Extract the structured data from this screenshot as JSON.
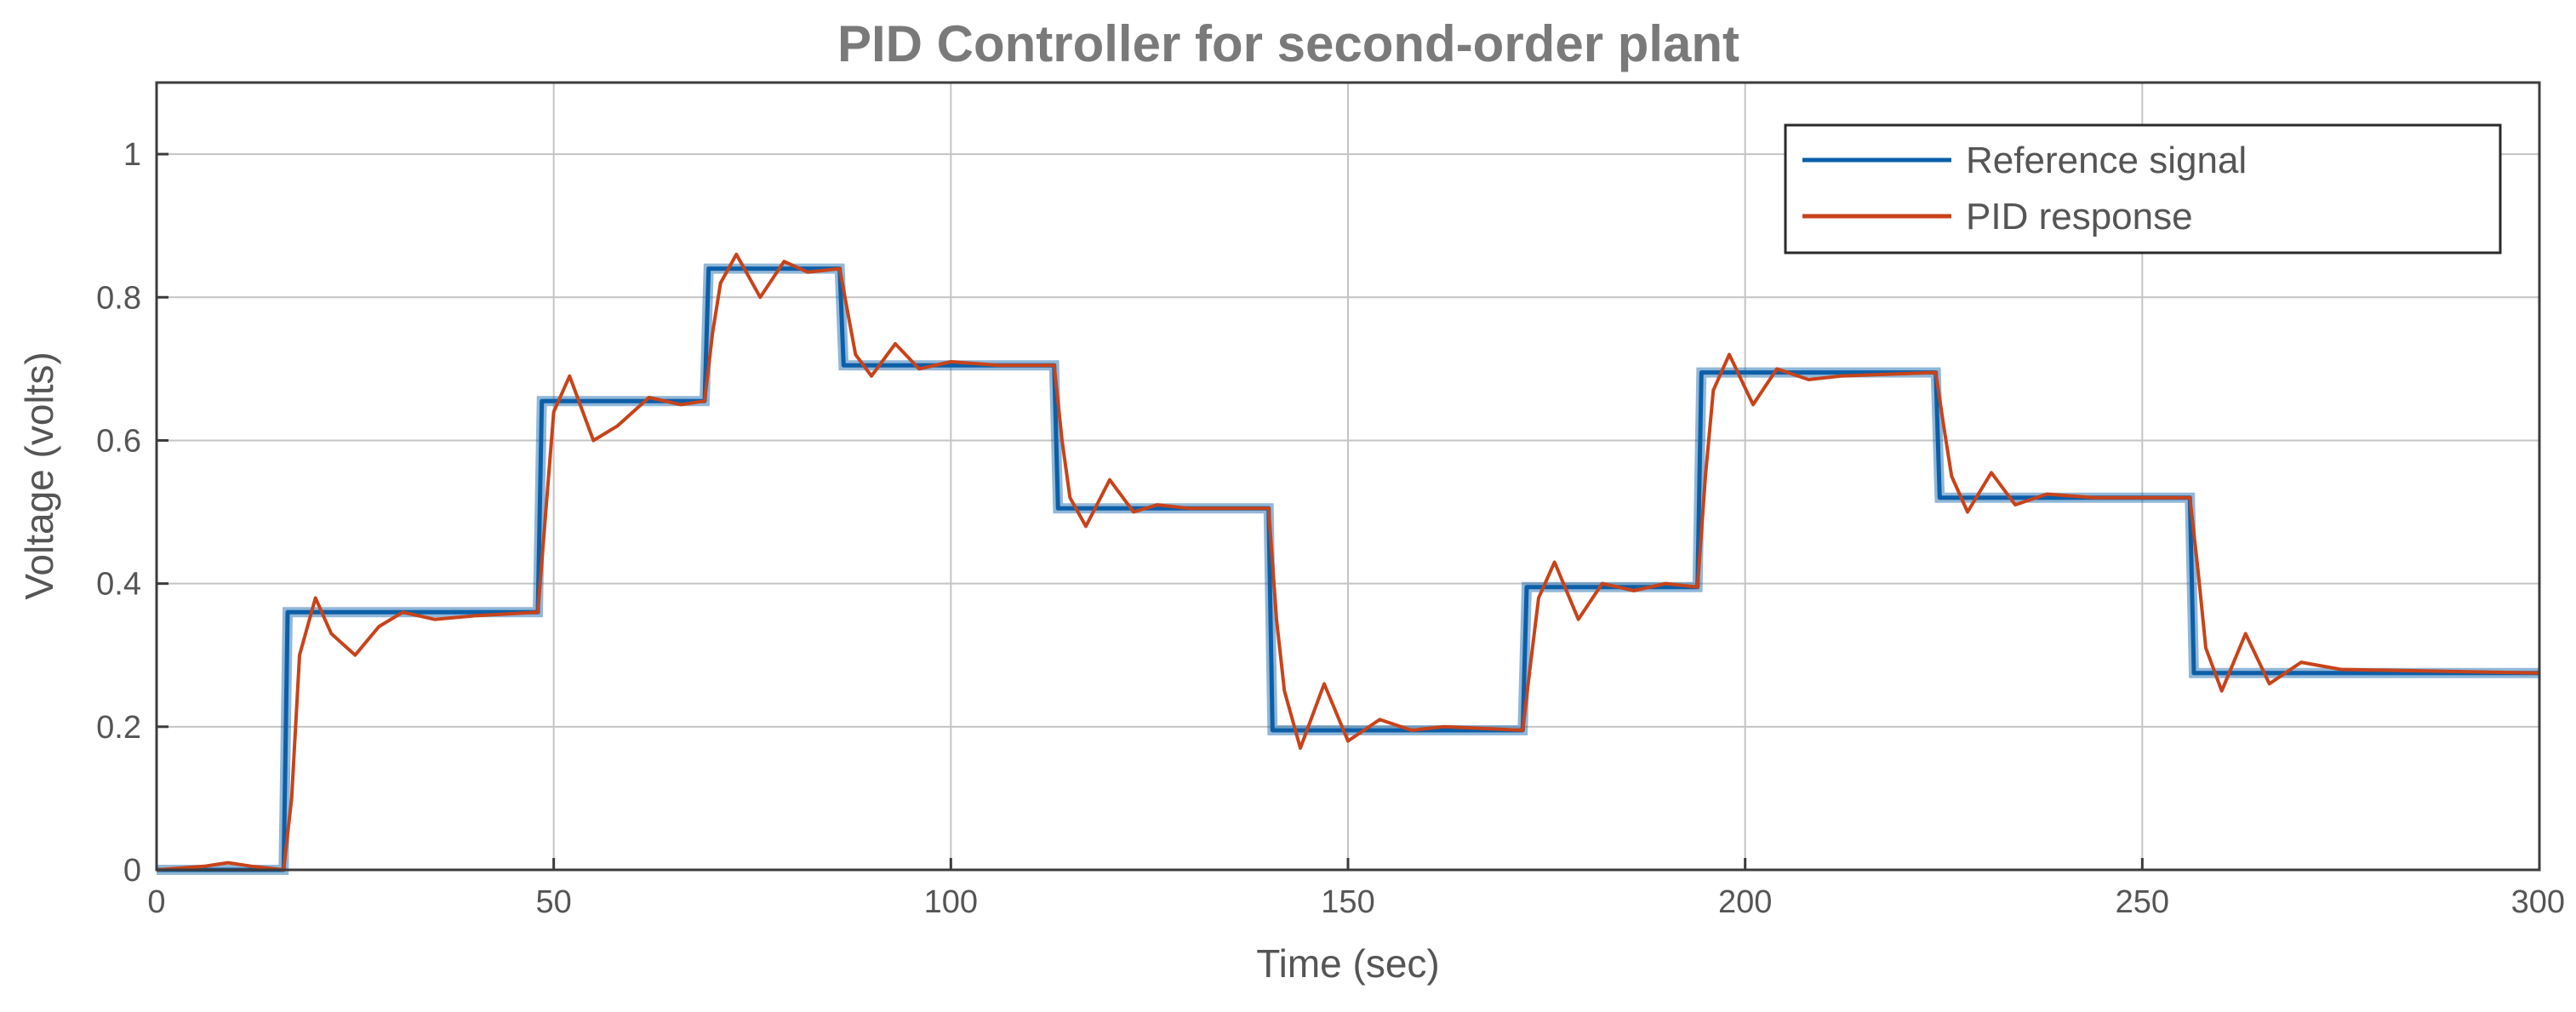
{
  "chart_data": {
    "type": "line",
    "title": "PID Controller for second-order plant",
    "xlabel": "Time (sec)",
    "ylabel": "Voltage (volts)",
    "xlim": [
      0,
      300
    ],
    "ylim": [
      0,
      1.1
    ],
    "xticks": [
      0,
      50,
      100,
      150,
      200,
      250,
      300
    ],
    "xtick_labels": [
      "0",
      "50",
      "100",
      "150",
      "200",
      "250",
      "300"
    ],
    "yticks": [
      0,
      0.2,
      0.4,
      0.6,
      0.8,
      1
    ],
    "ytick_labels": [
      "0",
      "0.2",
      "0.4",
      "0.6",
      "0.8",
      "1"
    ],
    "grid": true,
    "legend_position": "top-right",
    "series": [
      {
        "name": "Reference signal",
        "color": "#0b5fa8",
        "x": [
          0,
          16,
          16.5,
          48,
          48.5,
          69,
          69.5,
          86,
          86.5,
          113,
          113.5,
          140,
          140.5,
          172,
          172.5,
          194,
          194.5,
          224,
          224.5,
          256,
          256.5,
          300
        ],
        "y": [
          0,
          0,
          0.36,
          0.36,
          0.655,
          0.655,
          0.84,
          0.84,
          0.705,
          0.705,
          0.505,
          0.505,
          0.195,
          0.195,
          0.395,
          0.395,
          0.695,
          0.695,
          0.52,
          0.52,
          0.275,
          0.275
        ]
      },
      {
        "name": "PID response",
        "color": "#c8431a",
        "x": [
          0,
          6,
          9,
          12,
          16,
          17,
          18,
          20,
          22,
          25,
          28,
          31,
          35,
          40,
          48,
          49,
          50,
          52,
          55,
          58,
          62,
          66,
          69,
          70,
          71,
          73,
          76,
          79,
          82,
          86,
          87,
          88,
          90,
          93,
          96,
          100,
          106,
          113,
          114,
          115,
          117,
          120,
          123,
          126,
          130,
          140,
          141,
          142,
          144,
          147,
          150,
          154,
          158,
          162,
          172,
          173,
          174,
          176,
          179,
          182,
          186,
          190,
          194,
          195,
          196,
          198,
          201,
          204,
          208,
          212,
          224,
          225,
          226,
          228,
          231,
          234,
          238,
          244,
          256,
          257,
          258,
          260,
          263,
          266,
          270,
          275,
          300
        ],
        "y": [
          0,
          0.005,
          0.01,
          0.005,
          0,
          0.1,
          0.3,
          0.38,
          0.33,
          0.3,
          0.34,
          0.36,
          0.35,
          0.355,
          0.36,
          0.5,
          0.64,
          0.69,
          0.6,
          0.62,
          0.66,
          0.65,
          0.655,
          0.75,
          0.82,
          0.86,
          0.8,
          0.85,
          0.835,
          0.84,
          0.78,
          0.72,
          0.69,
          0.735,
          0.7,
          0.71,
          0.705,
          0.705,
          0.6,
          0.52,
          0.48,
          0.545,
          0.5,
          0.51,
          0.505,
          0.505,
          0.35,
          0.25,
          0.17,
          0.26,
          0.18,
          0.21,
          0.195,
          0.2,
          0.195,
          0.29,
          0.38,
          0.43,
          0.35,
          0.4,
          0.39,
          0.4,
          0.395,
          0.55,
          0.67,
          0.72,
          0.65,
          0.7,
          0.685,
          0.69,
          0.695,
          0.62,
          0.55,
          0.5,
          0.555,
          0.51,
          0.525,
          0.52,
          0.52,
          0.42,
          0.31,
          0.25,
          0.33,
          0.26,
          0.29,
          0.28,
          0.275
        ]
      }
    ]
  }
}
